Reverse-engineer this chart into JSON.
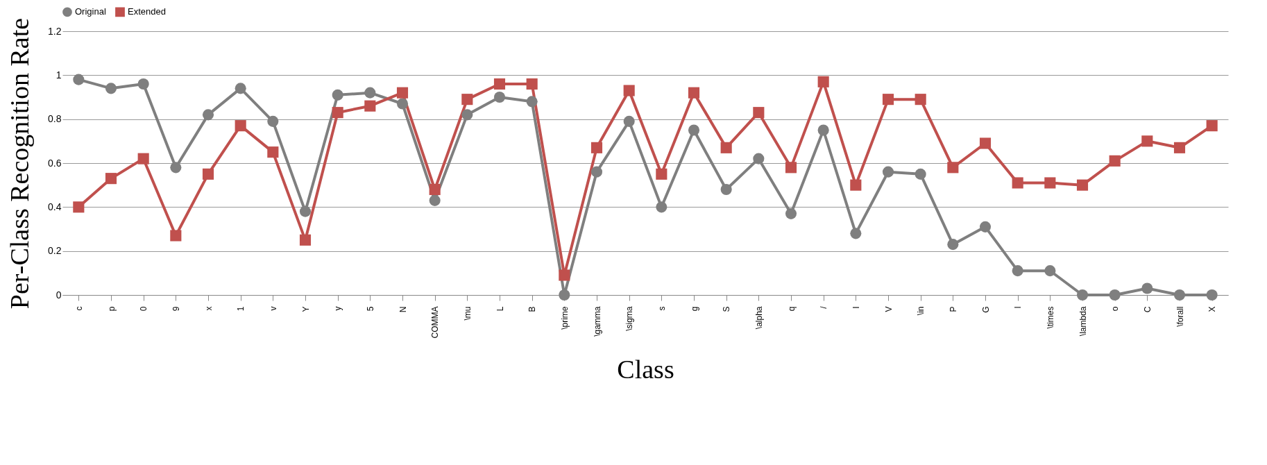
{
  "chart_data": {
    "type": "line",
    "xlabel": "Class",
    "ylabel": "Per-Class Recognition Rate",
    "categories": [
      "c",
      "p",
      "0",
      "9",
      "x",
      "1",
      "v",
      "Y",
      "y",
      "5",
      "N",
      "COMMA",
      "\\mu",
      "L",
      "B",
      "\\prime",
      "\\gamma",
      "\\sigma",
      "s",
      "g",
      "S",
      "\\alpha",
      "q",
      "/",
      "I",
      "V",
      "\\in",
      "P",
      "G",
      "l",
      "\\times",
      "\\lambda",
      "o",
      "C",
      "\\forall",
      "X"
    ],
    "series": [
      {
        "name": "Original",
        "color": "#7f7f7f",
        "marker": "circle",
        "values": [
          0.98,
          0.94,
          0.96,
          0.58,
          0.82,
          0.94,
          0.79,
          0.38,
          0.91,
          0.92,
          0.87,
          0.43,
          0.82,
          0.9,
          0.88,
          0.0,
          0.56,
          0.79,
          0.4,
          0.75,
          0.48,
          0.62,
          0.37,
          0.75,
          0.28,
          0.56,
          0.55,
          0.23,
          0.31,
          0.11,
          0.11,
          0.0,
          0.0,
          0.03,
          0.0,
          0.0
        ]
      },
      {
        "name": "Extended",
        "color": "#c0504d",
        "marker": "square",
        "values": [
          0.4,
          0.53,
          0.62,
          0.27,
          0.55,
          0.77,
          0.65,
          0.25,
          0.83,
          0.86,
          0.92,
          0.48,
          0.89,
          0.96,
          0.96,
          0.09,
          0.67,
          0.93,
          0.55,
          0.92,
          0.67,
          0.83,
          0.58,
          0.97,
          0.5,
          0.89,
          0.89,
          0.58,
          0.69,
          0.51,
          0.51,
          0.5,
          0.61,
          0.7,
          0.67,
          0.77
        ]
      }
    ],
    "ylim": [
      0,
      1.2
    ],
    "yticks": [
      0,
      0.2,
      0.4,
      0.6,
      0.8,
      1,
      1.2
    ],
    "grid": "y",
    "legend": "top",
    "line_style": "solid"
  }
}
